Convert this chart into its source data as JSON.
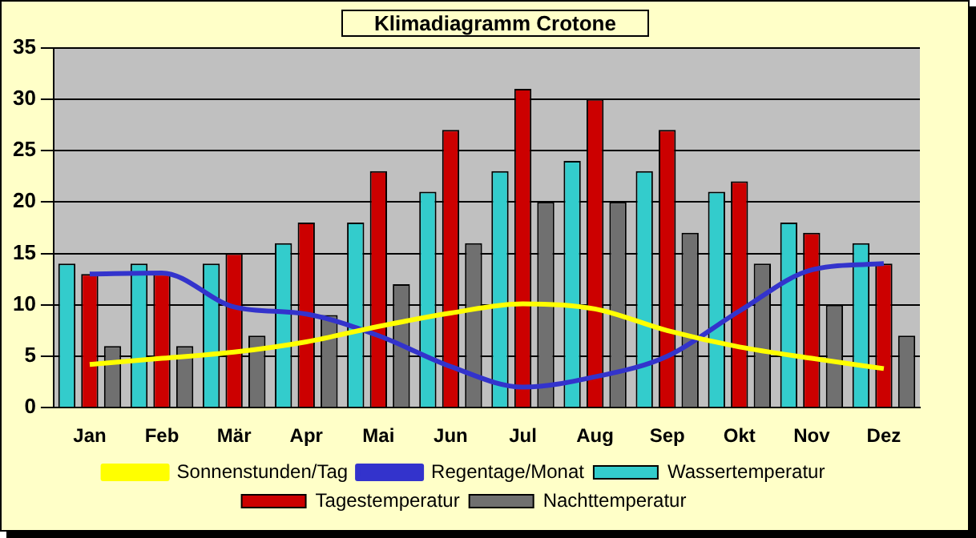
{
  "chart_data": {
    "type": "bar",
    "title": "Klimadiagramm Crotone",
    "categories": [
      "Jan",
      "Feb",
      "Mär",
      "Apr",
      "Mai",
      "Jun",
      "Jul",
      "Aug",
      "Sep",
      "Okt",
      "Nov",
      "Dez"
    ],
    "series": [
      {
        "name": "Wassertemperatur",
        "color": "#33cccc",
        "values": [
          14,
          14,
          14,
          16,
          18,
          21,
          23,
          24,
          23,
          21,
          18,
          16
        ]
      },
      {
        "name": "Tagestemperatur",
        "color": "#cc0000",
        "values": [
          13,
          13,
          15,
          18,
          23,
          27,
          31,
          30,
          27,
          22,
          17,
          14
        ]
      },
      {
        "name": "Nachttemperatur",
        "color": "#707070",
        "values": [
          6,
          6,
          7,
          9,
          12,
          16,
          20,
          20,
          17,
          14,
          10,
          7
        ]
      },
      {
        "name": "Sonnenstunden/Tag",
        "type": "line",
        "color": "#ffff00",
        "values": [
          4.2,
          4.8,
          5.4,
          6.4,
          7.9,
          9.2,
          10.1,
          9.6,
          7.5,
          5.9,
          4.8,
          3.8
        ]
      },
      {
        "name": "Regentage/Monat",
        "type": "line",
        "color": "#3333cc",
        "values": [
          13,
          13.1,
          9.8,
          9.1,
          7,
          4,
          2,
          3,
          5,
          9.4,
          13.4,
          14
        ]
      }
    ],
    "ylim": [
      0,
      35
    ],
    "yticks": [
      0,
      5,
      10,
      15,
      20,
      25,
      30,
      35
    ],
    "grid": "y",
    "legend": "bottom",
    "marker": "none"
  }
}
